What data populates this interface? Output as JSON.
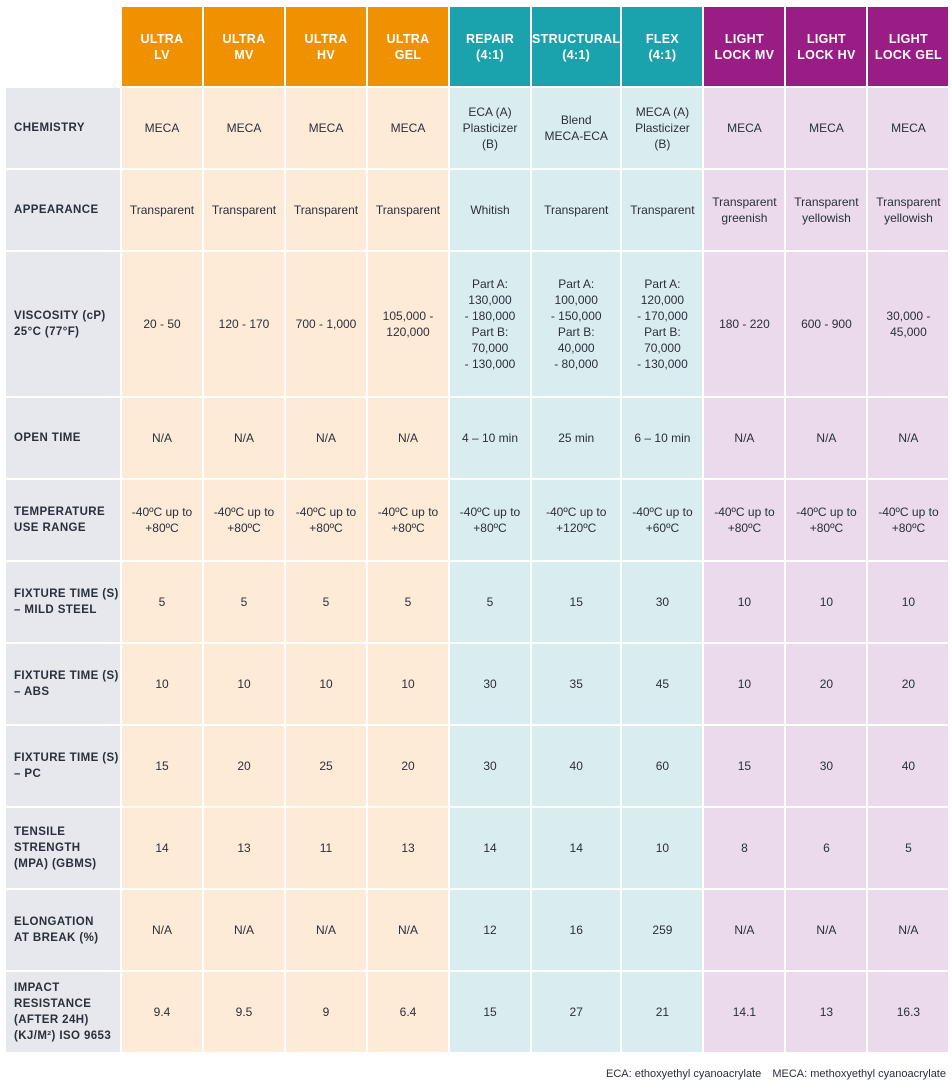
{
  "columns": [
    {
      "name": "ULTRA\nLV",
      "group": "ultra"
    },
    {
      "name": "ULTRA\nMV",
      "group": "ultra"
    },
    {
      "name": "ULTRA\nHV",
      "group": "ultra"
    },
    {
      "name": "ULTRA\nGEL",
      "group": "ultra"
    },
    {
      "name": "REPAIR\n(4:1)",
      "group": "teal"
    },
    {
      "name": "STRUCTURAL\n(4:1)",
      "group": "teal"
    },
    {
      "name": "FLEX\n(4:1)",
      "group": "teal"
    },
    {
      "name": "LIGHT\nLOCK MV",
      "group": "purple"
    },
    {
      "name": "LIGHT\nLOCK HV",
      "group": "purple"
    },
    {
      "name": "LIGHT\nLOCK GEL",
      "group": "purple"
    }
  ],
  "colors": {
    "ultra": "#ef9100",
    "teal": "#1aa3ad",
    "purple": "#9a1d85"
  },
  "rows": [
    {
      "label": "CHEMISTRY",
      "values": [
        "MECA",
        "MECA",
        "MECA",
        "MECA",
        "ECA (A)\nPlasticizer\n(B)",
        "Blend\nMECA-ECA",
        "MECA (A)\nPlasticizer\n(B)",
        "MECA",
        "MECA",
        "MECA"
      ]
    },
    {
      "label": "APPEARANCE",
      "values": [
        "Transparent",
        "Transparent",
        "Transparent",
        "Transparent",
        "Whitish",
        "Transparent",
        "Transparent",
        "Transparent\ngreenish",
        "Transparent\nyellowish",
        "Transparent\nyellowish"
      ]
    },
    {
      "label": "VISCOSITY (cP)\n25°C (77°F)",
      "values": [
        "20 - 50",
        "120 - 170",
        "700 - 1,000",
        "105,000 -\n120,000",
        "Part A:\n130,000\n- 180,000\nPart B:\n70,000\n- 130,000",
        "Part A:\n100,000\n- 150,000\nPart B:\n40,000\n- 80,000",
        "Part A:\n120,000\n- 170,000\nPart B:\n70,000\n- 130,000",
        "180 - 220",
        "600 - 900",
        "30,000 -\n45,000"
      ]
    },
    {
      "label": "OPEN TIME",
      "values": [
        "N/A",
        "N/A",
        "N/A",
        "N/A",
        "4 – 10 min",
        "25 min",
        "6 – 10 min",
        "N/A",
        "N/A",
        "N/A"
      ]
    },
    {
      "label": "TEMPERATURE\nUSE RANGE",
      "values": [
        "-40ºC up to\n+80ºC",
        "-40ºC up to\n+80ºC",
        "-40ºC up to\n+80ºC",
        "-40ºC up to\n+80ºC",
        "-40ºC up to\n+80ºC",
        "-40ºC up to\n+120ºC",
        "-40ºC up to\n+60ºC",
        "-40ºC up to\n+80ºC",
        "-40ºC up to\n+80ºC",
        "-40ºC up to\n+80ºC"
      ]
    },
    {
      "label": "FIXTURE TIME (S)\n– MILD STEEL",
      "values": [
        "5",
        "5",
        "5",
        "5",
        "5",
        "15",
        "30",
        "10",
        "10",
        "10"
      ]
    },
    {
      "label": "FIXTURE TIME (S)\n– ABS",
      "values": [
        "10",
        "10",
        "10",
        "10",
        "30",
        "35",
        "45",
        "10",
        "20",
        "20"
      ]
    },
    {
      "label": "FIXTURE TIME (S)\n– PC",
      "values": [
        "15",
        "20",
        "25",
        "20",
        "30",
        "40",
        "60",
        "15",
        "30",
        "40"
      ]
    },
    {
      "label": "TENSILE\nSTRENGTH\n(MPA) (GBMS)",
      "values": [
        "14",
        "13",
        "11",
        "13",
        "14",
        "14",
        "10",
        "8",
        "6",
        "5"
      ]
    },
    {
      "label": "ELONGATION\nAT BREAK (%)",
      "values": [
        "N/A",
        "N/A",
        "N/A",
        "N/A",
        "12",
        "16",
        "259",
        "N/A",
        "N/A",
        "N/A"
      ]
    },
    {
      "label": "IMPACT\nRESISTANCE\n(AFTER 24H)\n(KJ/M²) ISO 9653",
      "values": [
        "9.4",
        "9.5",
        "9",
        "6.4",
        "15",
        "27",
        "21",
        "14.1",
        "13",
        "16.3"
      ]
    }
  ],
  "footnote": {
    "eca": "ECA: ethoxyethyl cyanoacrylate",
    "meca": "MECA: methoxyethyl cyanoacrylate"
  }
}
